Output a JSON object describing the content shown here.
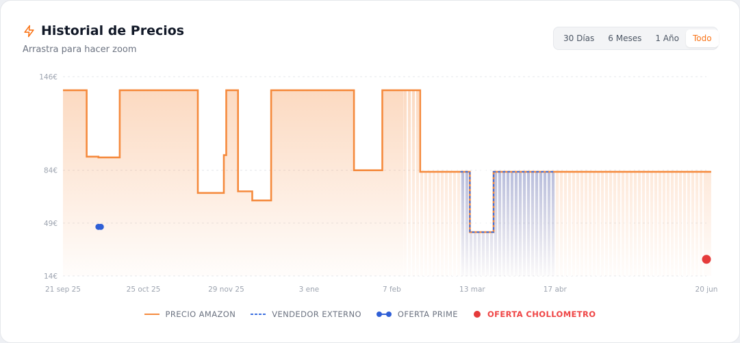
{
  "header": {
    "title": "Historial de Precios",
    "subtitle": "Arrastra para hacer zoom",
    "icon": "lightning-icon"
  },
  "ranges": [
    {
      "label": "30 Días",
      "active": false
    },
    {
      "label": "6 Meses",
      "active": false
    },
    {
      "label": "1 Año",
      "active": false
    },
    {
      "label": "Todo",
      "active": true
    }
  ],
  "colors": {
    "amazon": "#f58a3d",
    "external": "#3b6fe0",
    "prime": "#2f5fd6",
    "chollometro": "#e53a3a"
  },
  "chart_data": {
    "type": "line",
    "y_ticks": [
      {
        "value": 146,
        "label": "146€"
      },
      {
        "value": 84,
        "label": "84€"
      },
      {
        "value": 49,
        "label": "49€"
      },
      {
        "value": 14,
        "label": "14€"
      }
    ],
    "x_ticks": [
      {
        "date": "2025-09-21",
        "label": "21 sep 25"
      },
      {
        "date": "2025-10-25",
        "label": "25 oct 25"
      },
      {
        "date": "2025-11-29",
        "label": "29 nov 25"
      },
      {
        "date": "2026-01-03",
        "label": "3 ene"
      },
      {
        "date": "2026-02-07",
        "label": "7 feb"
      },
      {
        "date": "2026-03-13",
        "label": "13 mar"
      },
      {
        "date": "2026-04-17",
        "label": "17 abr"
      },
      {
        "date": "2026-06-20",
        "label": "20 jun"
      }
    ],
    "xlim": [
      "2025-09-21",
      "2026-06-20"
    ],
    "ylim": [
      14,
      146
    ],
    "grid": true,
    "legend_position": "bottom",
    "series": [
      {
        "name": "PRECIO AMAZON",
        "style": "step-solid",
        "points": [
          [
            "2025-09-21",
            137
          ],
          [
            "2025-10-01",
            137
          ],
          [
            "2025-10-01",
            93
          ],
          [
            "2025-10-06",
            93
          ],
          [
            "2025-10-06",
            92.5
          ],
          [
            "2025-10-15",
            92.5
          ],
          [
            "2025-10-15",
            93
          ],
          [
            "2025-10-15",
            137
          ],
          [
            "2025-11-17",
            137
          ],
          [
            "2025-11-17",
            69
          ],
          [
            "2025-11-28",
            69
          ],
          [
            "2025-11-28",
            94
          ],
          [
            "2025-11-29",
            94
          ],
          [
            "2025-11-29",
            137
          ],
          [
            "2025-12-04",
            137
          ],
          [
            "2025-12-04",
            70
          ],
          [
            "2025-12-10",
            70
          ],
          [
            "2025-12-10",
            64
          ],
          [
            "2025-12-18",
            64
          ],
          [
            "2025-12-18",
            137
          ],
          [
            "2026-01-22",
            137
          ],
          [
            "2026-01-22",
            84
          ],
          [
            "2026-02-03",
            84
          ],
          [
            "2026-02-03",
            137
          ],
          [
            "2026-02-19",
            137
          ],
          [
            "2026-02-19",
            83
          ],
          [
            "2026-03-12",
            83
          ],
          [
            "2026-03-12",
            43
          ],
          [
            "2026-03-13",
            43
          ],
          [
            "2026-03-22",
            43
          ],
          [
            "2026-03-22",
            83
          ],
          [
            "2026-06-22",
            83
          ]
        ]
      },
      {
        "name": "VENDEDOR EXTERNO",
        "style": "step-dashed",
        "points": [
          [
            "2026-03-08",
            83
          ],
          [
            "2026-03-12",
            83
          ],
          [
            "2026-03-12",
            43
          ],
          [
            "2026-03-22",
            43
          ],
          [
            "2026-03-22",
            83
          ],
          [
            "2026-04-17",
            83
          ]
        ]
      },
      {
        "name": "OFERTA PRIME",
        "style": "points",
        "points": [
          [
            "2025-10-06",
            46.5
          ],
          [
            "2025-10-07",
            46.5
          ]
        ]
      },
      {
        "name": "OFERTA CHOLLOMETRO",
        "style": "points",
        "points": [
          [
            "2026-06-20",
            25
          ]
        ]
      }
    ]
  }
}
